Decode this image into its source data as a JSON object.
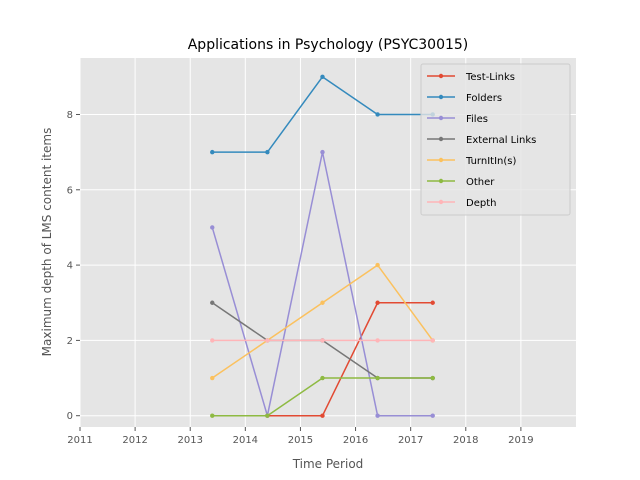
{
  "chart_data": {
    "type": "line",
    "title": "Applications in Psychology (PSYC30015)",
    "xlabel": "Time Period",
    "ylabel": "Maximum depth of LMS content items",
    "xlim": [
      2011,
      2020
    ],
    "ylim": [
      -0.3,
      9.5
    ],
    "xticks": [
      2011,
      2012,
      2013,
      2014,
      2015,
      2016,
      2017,
      2018,
      2019
    ],
    "yticks": [
      0,
      2,
      4,
      6,
      8
    ],
    "x": [
      2013.4,
      2014.4,
      2015.4,
      2016.4,
      2017.4
    ],
    "grid": true,
    "legend_position": "top-right",
    "series": [
      {
        "name": "Test-Links",
        "color": "#E24A33",
        "values": [
          null,
          0,
          0,
          3,
          3
        ]
      },
      {
        "name": "Folders",
        "color": "#348ABD",
        "values": [
          7,
          7,
          9,
          8,
          8
        ]
      },
      {
        "name": "Files",
        "color": "#988ED5",
        "values": [
          5,
          0,
          7,
          0,
          0
        ]
      },
      {
        "name": "External Links",
        "color": "#777777",
        "values": [
          3,
          2,
          2,
          1,
          1
        ]
      },
      {
        "name": "TurnItIn(s)",
        "color": "#FBC15E",
        "values": [
          1,
          2,
          3,
          4,
          2
        ]
      },
      {
        "name": "Other",
        "color": "#8EBA42",
        "values": [
          0,
          0,
          1,
          1,
          1
        ]
      },
      {
        "name": "Depth",
        "color": "#FFB5B8",
        "values": [
          2,
          2,
          2,
          2,
          2
        ]
      }
    ]
  }
}
